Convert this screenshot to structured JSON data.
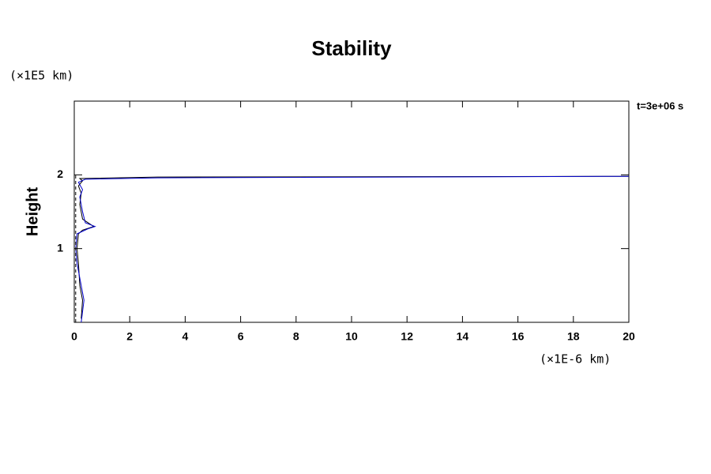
{
  "chart_data": {
    "type": "line",
    "title": "Stability",
    "ylabel": "Height",
    "yunit": "(×1E5 km)",
    "xunit": "(×1E-6 km)",
    "annotation": "t=3e+06 s",
    "xlim": [
      0,
      20
    ],
    "xticks": [
      0,
      2,
      4,
      6,
      8,
      10,
      12,
      14,
      16,
      18,
      20
    ],
    "ylim": [
      0,
      3
    ],
    "yticks": [
      1,
      2
    ],
    "series": [
      {
        "color": "#000000",
        "dashed": false,
        "x": [
          0.25,
          0.3,
          0.2,
          0.15,
          0.1,
          0.15,
          0.3,
          0.7,
          0.3,
          0.2,
          0.25,
          0.15,
          0.3,
          0.2,
          3,
          20
        ],
        "y": [
          0.05,
          0.3,
          0.5,
          0.8,
          1.0,
          1.2,
          1.25,
          1.3,
          1.4,
          1.6,
          1.75,
          1.85,
          1.92,
          1.95,
          1.97,
          1.98
        ]
      },
      {
        "color": "#0000cc",
        "dashed": false,
        "x": [
          0.25,
          0.35,
          0.2,
          0.1,
          0.05,
          0.1,
          0.5,
          0.75,
          0.4,
          0.3,
          0.2,
          0.3,
          0.15,
          0.4,
          3,
          20
        ],
        "y": [
          0,
          0.3,
          0.6,
          0.8,
          1.0,
          1.2,
          1.27,
          1.3,
          1.35,
          1.5,
          1.7,
          1.8,
          1.9,
          1.94,
          1.96,
          1.98
        ]
      },
      {
        "color": "#000000",
        "dashed": true,
        "x": [
          0.05,
          0.05
        ],
        "y": [
          0,
          2
        ]
      }
    ]
  }
}
